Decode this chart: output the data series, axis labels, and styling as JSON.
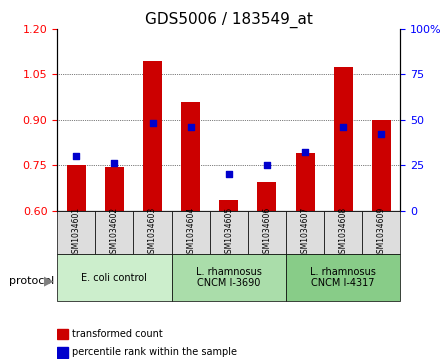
{
  "title": "GDS5006 / 183549_at",
  "samples": [
    "GSM1034601",
    "GSM1034602",
    "GSM1034603",
    "GSM1034604",
    "GSM1034605",
    "GSM1034606",
    "GSM1034607",
    "GSM1034608",
    "GSM1034609"
  ],
  "transformed_count": [
    0.75,
    0.745,
    1.095,
    0.96,
    0.635,
    0.695,
    0.79,
    1.075,
    0.9
  ],
  "percentile_rank": [
    30,
    26,
    48,
    46,
    20,
    25,
    32,
    46,
    42
  ],
  "ylim_left": [
    0.6,
    1.2
  ],
  "ylim_right": [
    0,
    100
  ],
  "yticks_left": [
    0.6,
    0.75,
    0.9,
    1.05,
    1.2
  ],
  "yticks_right": [
    0,
    25,
    50,
    75,
    100
  ],
  "bar_color": "#cc0000",
  "dot_color": "#0000cc",
  "groups": [
    {
      "label": "E. coli control",
      "start": 0,
      "end": 3,
      "color": "#ccffcc"
    },
    {
      "label": "L. rhamnosus\nCNCM I-3690",
      "start": 3,
      "end": 6,
      "color": "#99ee99"
    },
    {
      "label": "L. rhamnosus\nCNCM I-4317",
      "start": 6,
      "end": 9,
      "color": "#55cc55"
    }
  ],
  "protocol_label": "protocol",
  "legend_bar_label": "transformed count",
  "legend_dot_label": "percentile rank within the sample",
  "tick_label_fontsize": 7,
  "title_fontsize": 11
}
